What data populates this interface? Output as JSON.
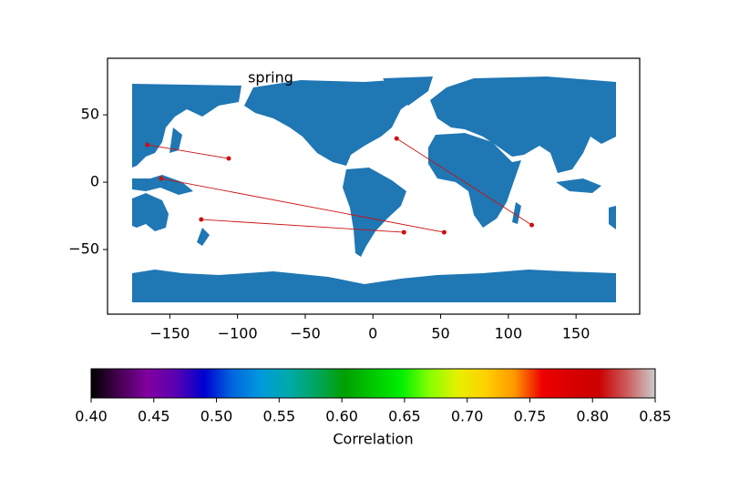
{
  "chart_data": {
    "type": "map",
    "title": "spring",
    "xlim": [
      -196,
      197
    ],
    "ylim": [
      -98,
      92
    ],
    "xticks": [
      {
        "value": -150,
        "label": "−150"
      },
      {
        "value": -100,
        "label": "−100"
      },
      {
        "value": -50,
        "label": "−50"
      },
      0,
      50,
      100,
      150
    ],
    "yticks": [
      {
        "value": -50,
        "label": "−50"
      },
      0,
      50
    ],
    "land_color": "#1f77b4",
    "link_color": "#cc1111",
    "links": [
      {
        "lon": [
          -166.6,
          -106.5
        ],
        "lat": [
          27.7,
          17.6
        ]
      },
      {
        "lon": [
          -156.4,
          52.6
        ],
        "lat": [
          2.7,
          -37.2
        ]
      },
      {
        "lon": [
          -126.8,
          22.9
        ],
        "lat": [
          -27.7,
          -37.2
        ]
      },
      {
        "lon": [
          17.5,
          117.3
        ],
        "lat": [
          32.4,
          -31.8
        ]
      }
    ],
    "colorbar": {
      "label": "Correlation",
      "colormap": "nipy_spectral",
      "clim": [
        0.4,
        0.85
      ],
      "ticks": [
        {
          "value": 0.4,
          "label": "0.40"
        },
        {
          "value": 0.45,
          "label": "0.45"
        },
        {
          "value": 0.5,
          "label": "0.50"
        },
        {
          "value": 0.55,
          "label": "0.55"
        },
        {
          "value": 0.6,
          "label": "0.60"
        },
        {
          "value": 0.65,
          "label": "0.65"
        },
        {
          "value": 0.7,
          "label": "0.70"
        },
        {
          "value": 0.75,
          "label": "0.75"
        },
        {
          "value": 0.8,
          "label": "0.80"
        },
        {
          "value": 0.85,
          "label": "0.85"
        }
      ]
    }
  }
}
